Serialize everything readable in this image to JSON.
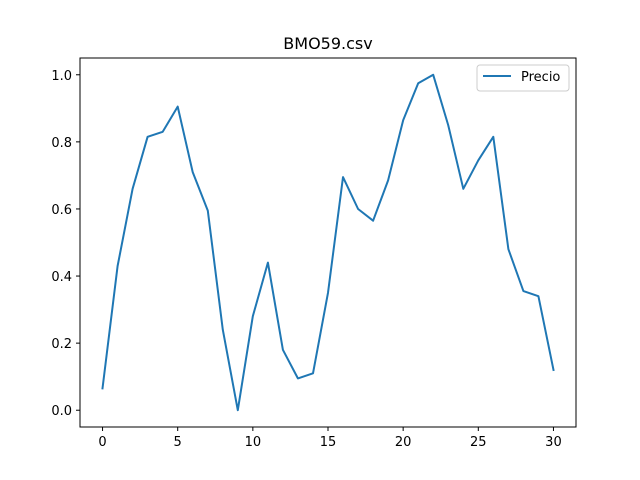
{
  "chart_data": {
    "type": "line",
    "title": "BMO59.csv",
    "xlabel": "",
    "ylabel": "",
    "xlim": [
      -1.5,
      31.5
    ],
    "ylim": [
      -0.05,
      1.05
    ],
    "xticks": [
      0,
      5,
      10,
      15,
      20,
      25,
      30
    ],
    "xtick_labels": [
      "0",
      "5",
      "10",
      "15",
      "20",
      "25",
      "30"
    ],
    "yticks": [
      0.0,
      0.2,
      0.4,
      0.6,
      0.8,
      1.0
    ],
    "ytick_labels": [
      "0.0",
      "0.2",
      "0.4",
      "0.6",
      "0.8",
      "1.0"
    ],
    "grid": false,
    "legend_position": "top-right",
    "series": [
      {
        "name": "Precio",
        "color": "#1f77b4",
        "x": [
          0,
          1,
          2,
          3,
          4,
          5,
          6,
          7,
          8,
          9,
          10,
          11,
          12,
          13,
          14,
          15,
          16,
          17,
          18,
          19,
          20,
          21,
          22,
          23,
          24,
          25,
          26,
          27,
          28,
          29,
          30
        ],
        "y": [
          0.065,
          0.43,
          0.66,
          0.815,
          0.83,
          0.905,
          0.71,
          0.595,
          0.24,
          0.0,
          0.28,
          0.44,
          0.18,
          0.095,
          0.11,
          0.35,
          0.695,
          0.6,
          0.565,
          0.685,
          0.865,
          0.975,
          1.0,
          0.85,
          0.66,
          0.745,
          0.815,
          0.48,
          0.355,
          0.34,
          0.12
        ]
      }
    ]
  }
}
